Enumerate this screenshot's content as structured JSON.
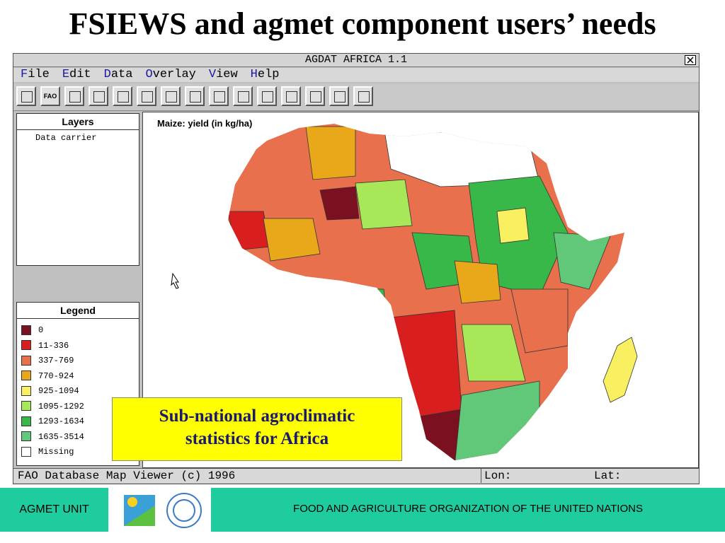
{
  "slide_title": "FSIEWS and agmet component users’ needs",
  "window": {
    "title": "AGDAT AFRICA 1.1",
    "menu": [
      "File",
      "Edit",
      "Data",
      "Overlay",
      "View",
      "Help"
    ],
    "toolbar_fao": "FAO",
    "layers": {
      "title": "Layers",
      "items": [
        "Data carrier"
      ]
    },
    "legend": {
      "title": "Legend",
      "items": [
        {
          "label": "0",
          "color": "#7a1020"
        },
        {
          "label": "11-336",
          "color": "#d81e1e"
        },
        {
          "label": "337-769",
          "color": "#e8704c"
        },
        {
          "label": "770-924",
          "color": "#e8a81a"
        },
        {
          "label": "925-1094",
          "color": "#f8f060"
        },
        {
          "label": "1095-1292",
          "color": "#a8e858"
        },
        {
          "label": "1293-1634",
          "color": "#38b848"
        },
        {
          "label": "1635-3514",
          "color": "#60c878"
        },
        {
          "label": "Missing",
          "color": "#ffffff"
        }
      ]
    },
    "map_label": "Maize: yield (in kg/ha)",
    "status": {
      "app": "FAO Database Map Viewer (c) 1996",
      "lon": "Lon:",
      "lat": "Lat:"
    }
  },
  "callout": [
    "Sub-national agroclimatic",
    "statistics for Africa"
  ],
  "footer": {
    "unit": "AGMET UNIT",
    "organization": "FOOD AND AGRICULTURE ORGANIZATION OF THE UNITED NATIONS"
  }
}
